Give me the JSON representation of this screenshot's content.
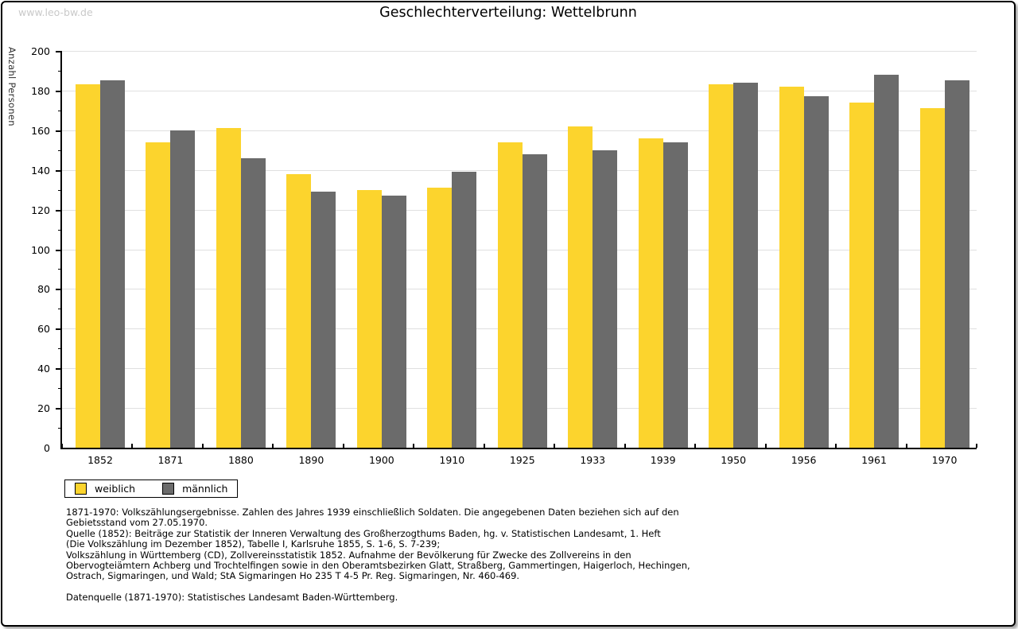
{
  "watermark": "www.leo-bw.de",
  "chart_data": {
    "type": "bar",
    "title": "Geschlechterverteilung: Wettelbrunn",
    "ylabel": "Anzahl Personen",
    "xlabel": "",
    "ylim": [
      0,
      200
    ],
    "ytick_step": 20,
    "ytick_minor_step": 10,
    "grid": true,
    "legend_position": "bottom-left",
    "categories": [
      "1852",
      "1871",
      "1880",
      "1890",
      "1900",
      "1910",
      "1925",
      "1933",
      "1939",
      "1950",
      "1956",
      "1961",
      "1970"
    ],
    "series": [
      {
        "name": "weiblich",
        "color": "#fcd42d",
        "values": [
          183,
          154,
          161,
          138,
          130,
          131,
          154,
          162,
          156,
          183,
          182,
          174,
          171
        ]
      },
      {
        "name": "männlich",
        "color": "#6b6b6b",
        "values": [
          185,
          160,
          146,
          129,
          127,
          139,
          148,
          150,
          154,
          184,
          177,
          188,
          185
        ]
      }
    ],
    "colors": {
      "gridline": "#e0e0e0",
      "axis": "#000000"
    }
  },
  "footnotes": {
    "lines": [
      "1871-1970: Volkszählungsergebnisse. Zahlen des Jahres 1939 einschließlich Soldaten. Die angegebenen Daten beziehen sich auf den",
      "Gebietsstand vom 27.05.1970.",
      "Quelle (1852): Beiträge zur Statistik der Inneren Verwaltung des Großherzogthums Baden, hg. v. Statistischen Landesamt, 1. Heft",
      "(Die Volkszählung im Dezember 1852), Tabelle I, Karlsruhe 1855, S. 1-6, S. 7-239;",
      "Volkszählung in Württemberg (CD), Zollvereinsstatistik 1852. Aufnahme der Bevölkerung für Zwecke des Zollvereins in den",
      "Obervogteiämtern Achberg und Trochtelfingen sowie in den Oberamtsbezirken Glatt, Straßberg, Gammertingen, Haigerloch, Hechingen,",
      "Ostrach, Sigmaringen, und Wald; StA Sigmaringen Ho 235 T 4-5 Pr. Reg. Sigmaringen, Nr. 460-469."
    ],
    "datasource": "Datenquelle (1871-1970): Statistisches Landesamt Baden-Württemberg."
  }
}
